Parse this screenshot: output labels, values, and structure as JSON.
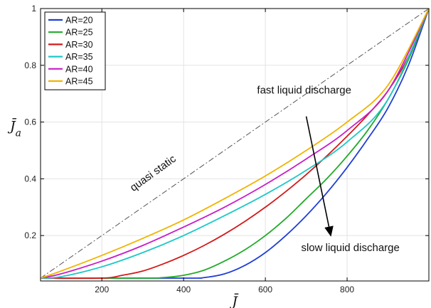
{
  "chart_data": {
    "type": "line",
    "title": "",
    "xlabel": "J̄",
    "ylabel": "J̄a",
    "xlim": [
      50,
      1000
    ],
    "ylim": [
      0.04,
      1
    ],
    "xticks": [
      200,
      400,
      600,
      800
    ],
    "yticks": [
      0.2,
      0.4,
      0.6,
      0.8,
      1
    ],
    "xtick_labels": [
      "200",
      "400",
      "600",
      "800"
    ],
    "ytick_labels": [
      "0.2",
      "0.4",
      "0.6",
      "0.8",
      "1"
    ],
    "grid": true,
    "legend_position": "top-left",
    "reference_line": {
      "label": "quasi static",
      "points": [
        [
          50,
          0.05
        ],
        [
          1000,
          1.0
        ]
      ],
      "color": "#555555",
      "style": "dashdot"
    },
    "annotations": [
      {
        "text": "fast liquid discharge"
      },
      {
        "text": "slow liquid discharge"
      }
    ],
    "arrow": {
      "from": [
        700,
        0.62
      ],
      "to": [
        760,
        0.2
      ],
      "color": "#000000"
    },
    "series": [
      {
        "name": "AR=20",
        "color": "#1f3fd6",
        "x": [
          50,
          400,
          450,
          500,
          550,
          600,
          650,
          700,
          750,
          800,
          850,
          900,
          950,
          1000
        ],
        "y": [
          0.05,
          0.05,
          0.052,
          0.065,
          0.095,
          0.14,
          0.2,
          0.27,
          0.35,
          0.44,
          0.54,
          0.65,
          0.8,
          1.0
        ]
      },
      {
        "name": "AR=25",
        "color": "#22aa2a",
        "x": [
          50,
          300,
          350,
          400,
          450,
          500,
          550,
          600,
          650,
          700,
          750,
          800,
          850,
          900,
          950,
          1000
        ],
        "y": [
          0.05,
          0.05,
          0.052,
          0.06,
          0.078,
          0.11,
          0.15,
          0.2,
          0.26,
          0.33,
          0.4,
          0.48,
          0.57,
          0.68,
          0.82,
          1.0
        ]
      },
      {
        "name": "AR=30",
        "color": "#d21a1a",
        "x": [
          50,
          200,
          250,
          300,
          350,
          400,
          450,
          500,
          550,
          600,
          650,
          700,
          750,
          800,
          850,
          900,
          950,
          1000
        ],
        "y": [
          0.05,
          0.05,
          0.06,
          0.075,
          0.1,
          0.13,
          0.165,
          0.205,
          0.25,
          0.3,
          0.355,
          0.415,
          0.48,
          0.55,
          0.625,
          0.71,
          0.83,
          1.0
        ]
      },
      {
        "name": "AR=35",
        "color": "#1ec8c8",
        "x": [
          50,
          100,
          200,
          300,
          400,
          500,
          600,
          700,
          800,
          900,
          1000
        ],
        "y": [
          0.05,
          0.055,
          0.09,
          0.14,
          0.2,
          0.27,
          0.345,
          0.43,
          0.53,
          0.68,
          1.0
        ]
      },
      {
        "name": "AR=40",
        "color": "#c81ec8",
        "x": [
          50,
          100,
          200,
          300,
          400,
          500,
          600,
          700,
          800,
          900,
          1000
        ],
        "y": [
          0.05,
          0.065,
          0.11,
          0.165,
          0.23,
          0.3,
          0.38,
          0.47,
          0.57,
          0.71,
          1.0
        ]
      },
      {
        "name": "AR=45",
        "color": "#f0b400",
        "x": [
          50,
          100,
          200,
          300,
          400,
          500,
          600,
          700,
          800,
          900,
          1000
        ],
        "y": [
          0.05,
          0.075,
          0.13,
          0.19,
          0.255,
          0.33,
          0.41,
          0.5,
          0.6,
          0.73,
          1.0
        ]
      }
    ]
  }
}
